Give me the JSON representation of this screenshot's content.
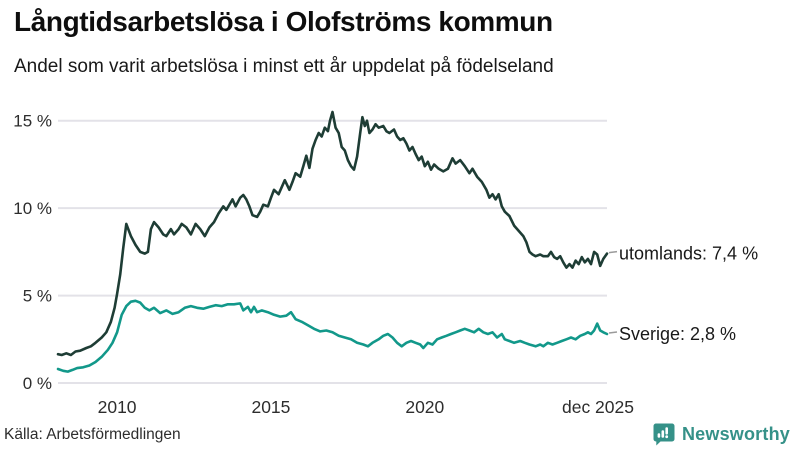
{
  "header": {
    "title": "Långtidsarbetslösa i Olofströms kommun",
    "subtitle": "Andel som varit arbetslösa i minst ett år uppdelat på födelseland"
  },
  "footer": {
    "source": "Källa: Arbetsförmedlingen",
    "brand": "Newsworthy"
  },
  "colors": {
    "utomlands_line": "#1e3d35",
    "sverige_line": "#12988a",
    "grid": "#e3e2e8",
    "tick_text": "#2d2d2d",
    "legend_text": "#191919",
    "leader_dash": "#9a9a9a",
    "brand_teal": "#359188"
  },
  "chart_data": {
    "type": "line",
    "title": "Långtidsarbetslösa i Olofströms kommun",
    "subtitle": "Andel som varit arbetslösa i minst ett år uppdelat på födelseland",
    "xlabel": "",
    "ylabel": "",
    "xlim": [
      2008.08,
      2025.92
    ],
    "ylim": [
      0,
      15.5
    ],
    "grid": true,
    "legend_position": "end-of-line",
    "y_ticks": [
      {
        "label": "0 %",
        "v": 0
      },
      {
        "label": "5 %",
        "v": 5
      },
      {
        "label": "10 %",
        "v": 10
      },
      {
        "label": "15 %",
        "v": 15
      }
    ],
    "x_ticks": [
      {
        "label": "2010",
        "x": 2010,
        "dx": 0
      },
      {
        "label": "2015",
        "x": 2015,
        "dx": 0
      },
      {
        "label": "2020",
        "x": 2020,
        "dx": 0
      },
      {
        "label": "dec 2025",
        "x": 2025.92,
        "dx": -9
      }
    ],
    "series": [
      {
        "name": "utomlands",
        "end_label": "utomlands: 7,4 %",
        "last_value_text": "7,4 %",
        "color": "#1e3d35",
        "points": [
          [
            2008.08,
            1.65
          ],
          [
            2008.2,
            1.6
          ],
          [
            2008.35,
            1.7
          ],
          [
            2008.5,
            1.6
          ],
          [
            2008.65,
            1.8
          ],
          [
            2008.8,
            1.85
          ],
          [
            2009.0,
            2.0
          ],
          [
            2009.15,
            2.1
          ],
          [
            2009.3,
            2.3
          ],
          [
            2009.5,
            2.6
          ],
          [
            2009.65,
            2.9
          ],
          [
            2009.8,
            3.5
          ],
          [
            2009.92,
            4.3
          ],
          [
            2010.0,
            5.1
          ],
          [
            2010.1,
            6.2
          ],
          [
            2010.2,
            7.7
          ],
          [
            2010.3,
            9.1
          ],
          [
            2010.45,
            8.4
          ],
          [
            2010.6,
            7.9
          ],
          [
            2010.75,
            7.5
          ],
          [
            2010.9,
            7.4
          ],
          [
            2011.0,
            7.5
          ],
          [
            2011.1,
            8.8
          ],
          [
            2011.2,
            9.2
          ],
          [
            2011.35,
            8.9
          ],
          [
            2011.5,
            8.5
          ],
          [
            2011.6,
            8.4
          ],
          [
            2011.75,
            8.8
          ],
          [
            2011.85,
            8.5
          ],
          [
            2012.0,
            8.8
          ],
          [
            2012.1,
            9.1
          ],
          [
            2012.25,
            8.9
          ],
          [
            2012.4,
            8.5
          ],
          [
            2012.55,
            9.1
          ],
          [
            2012.7,
            8.8
          ],
          [
            2012.85,
            8.4
          ],
          [
            2013.0,
            8.9
          ],
          [
            2013.15,
            9.2
          ],
          [
            2013.3,
            9.7
          ],
          [
            2013.45,
            10.1
          ],
          [
            2013.55,
            9.9
          ],
          [
            2013.65,
            10.2
          ],
          [
            2013.75,
            10.5
          ],
          [
            2013.85,
            10.1
          ],
          [
            2014.0,
            10.6
          ],
          [
            2014.1,
            10.75
          ],
          [
            2014.2,
            10.5
          ],
          [
            2014.3,
            10.1
          ],
          [
            2014.4,
            9.6
          ],
          [
            2014.55,
            9.5
          ],
          [
            2014.65,
            9.8
          ],
          [
            2014.75,
            10.2
          ],
          [
            2014.9,
            10.1
          ],
          [
            2015.0,
            10.6
          ],
          [
            2015.1,
            11.05
          ],
          [
            2015.25,
            10.8
          ],
          [
            2015.35,
            11.2
          ],
          [
            2015.45,
            11.6
          ],
          [
            2015.6,
            11.05
          ],
          [
            2015.7,
            11.5
          ],
          [
            2015.8,
            12.0
          ],
          [
            2015.95,
            11.8
          ],
          [
            2016.05,
            12.4
          ],
          [
            2016.15,
            13.0
          ],
          [
            2016.25,
            12.3
          ],
          [
            2016.35,
            13.4
          ],
          [
            2016.45,
            13.9
          ],
          [
            2016.55,
            14.3
          ],
          [
            2016.65,
            14.1
          ],
          [
            2016.75,
            14.6
          ],
          [
            2016.85,
            14.4
          ],
          [
            2016.92,
            15.0
          ],
          [
            2017.0,
            15.5
          ],
          [
            2017.1,
            14.6
          ],
          [
            2017.2,
            14.3
          ],
          [
            2017.3,
            13.5
          ],
          [
            2017.4,
            13.3
          ],
          [
            2017.5,
            12.75
          ],
          [
            2017.6,
            12.4
          ],
          [
            2017.7,
            12.2
          ],
          [
            2017.8,
            12.95
          ],
          [
            2017.9,
            14.3
          ],
          [
            2017.97,
            15.2
          ],
          [
            2018.05,
            14.7
          ],
          [
            2018.12,
            15.0
          ],
          [
            2018.2,
            14.3
          ],
          [
            2018.3,
            14.5
          ],
          [
            2018.4,
            14.8
          ],
          [
            2018.5,
            14.6
          ],
          [
            2018.65,
            14.7
          ],
          [
            2018.75,
            14.4
          ],
          [
            2018.85,
            14.3
          ],
          [
            2019.0,
            14.5
          ],
          [
            2019.1,
            14.1
          ],
          [
            2019.2,
            13.9
          ],
          [
            2019.3,
            14.0
          ],
          [
            2019.4,
            13.7
          ],
          [
            2019.5,
            13.3
          ],
          [
            2019.6,
            13.5
          ],
          [
            2019.7,
            13.1
          ],
          [
            2019.8,
            12.75
          ],
          [
            2019.9,
            12.95
          ],
          [
            2020.0,
            12.4
          ],
          [
            2020.1,
            12.65
          ],
          [
            2020.2,
            12.2
          ],
          [
            2020.3,
            12.5
          ],
          [
            2020.45,
            12.25
          ],
          [
            2020.6,
            12.1
          ],
          [
            2020.75,
            12.25
          ],
          [
            2020.9,
            12.85
          ],
          [
            2021.0,
            12.55
          ],
          [
            2021.15,
            12.75
          ],
          [
            2021.3,
            12.4
          ],
          [
            2021.45,
            12.0
          ],
          [
            2021.55,
            12.25
          ],
          [
            2021.7,
            11.8
          ],
          [
            2021.85,
            11.5
          ],
          [
            2022.0,
            11.05
          ],
          [
            2022.1,
            10.6
          ],
          [
            2022.2,
            10.8
          ],
          [
            2022.3,
            10.5
          ],
          [
            2022.4,
            10.8
          ],
          [
            2022.5,
            10.1
          ],
          [
            2022.6,
            9.8
          ],
          [
            2022.75,
            9.55
          ],
          [
            2022.9,
            9.0
          ],
          [
            2023.05,
            8.7
          ],
          [
            2023.2,
            8.4
          ],
          [
            2023.3,
            8.05
          ],
          [
            2023.4,
            7.5
          ],
          [
            2023.5,
            7.35
          ],
          [
            2023.6,
            7.25
          ],
          [
            2023.75,
            7.35
          ],
          [
            2023.85,
            7.25
          ],
          [
            2024.0,
            7.25
          ],
          [
            2024.1,
            7.5
          ],
          [
            2024.2,
            7.2
          ],
          [
            2024.3,
            7.1
          ],
          [
            2024.4,
            7.25
          ],
          [
            2024.5,
            6.9
          ],
          [
            2024.6,
            6.6
          ],
          [
            2024.7,
            6.8
          ],
          [
            2024.8,
            6.6
          ],
          [
            2024.9,
            7.0
          ],
          [
            2025.0,
            6.8
          ],
          [
            2025.1,
            7.2
          ],
          [
            2025.2,
            6.9
          ],
          [
            2025.3,
            7.1
          ],
          [
            2025.4,
            6.8
          ],
          [
            2025.5,
            7.5
          ],
          [
            2025.6,
            7.35
          ],
          [
            2025.7,
            6.7
          ],
          [
            2025.8,
            7.1
          ],
          [
            2025.92,
            7.4
          ]
        ]
      },
      {
        "name": "Sverige",
        "end_label": "Sverige: 2,8 %",
        "last_value_text": "2,8 %",
        "color": "#12988a",
        "points": [
          [
            2008.08,
            0.8
          ],
          [
            2008.25,
            0.7
          ],
          [
            2008.4,
            0.65
          ],
          [
            2008.55,
            0.75
          ],
          [
            2008.7,
            0.85
          ],
          [
            2008.9,
            0.9
          ],
          [
            2009.1,
            1.0
          ],
          [
            2009.3,
            1.2
          ],
          [
            2009.5,
            1.5
          ],
          [
            2009.7,
            1.9
          ],
          [
            2009.85,
            2.3
          ],
          [
            2010.0,
            2.9
          ],
          [
            2010.15,
            3.9
          ],
          [
            2010.3,
            4.4
          ],
          [
            2010.45,
            4.65
          ],
          [
            2010.6,
            4.7
          ],
          [
            2010.75,
            4.6
          ],
          [
            2010.9,
            4.3
          ],
          [
            2011.05,
            4.15
          ],
          [
            2011.2,
            4.3
          ],
          [
            2011.4,
            4.0
          ],
          [
            2011.6,
            4.15
          ],
          [
            2011.8,
            3.95
          ],
          [
            2012.0,
            4.05
          ],
          [
            2012.2,
            4.3
          ],
          [
            2012.4,
            4.4
          ],
          [
            2012.6,
            4.3
          ],
          [
            2012.8,
            4.25
          ],
          [
            2013.0,
            4.35
          ],
          [
            2013.2,
            4.45
          ],
          [
            2013.4,
            4.4
          ],
          [
            2013.6,
            4.5
          ],
          [
            2013.8,
            4.5
          ],
          [
            2014.0,
            4.55
          ],
          [
            2014.1,
            4.15
          ],
          [
            2014.25,
            4.35
          ],
          [
            2014.35,
            4.05
          ],
          [
            2014.45,
            4.35
          ],
          [
            2014.55,
            4.05
          ],
          [
            2014.7,
            4.15
          ],
          [
            2014.9,
            4.05
          ],
          [
            2015.1,
            3.9
          ],
          [
            2015.3,
            3.8
          ],
          [
            2015.5,
            3.85
          ],
          [
            2015.65,
            4.05
          ],
          [
            2015.8,
            3.65
          ],
          [
            2016.0,
            3.5
          ],
          [
            2016.2,
            3.3
          ],
          [
            2016.4,
            3.1
          ],
          [
            2016.6,
            2.95
          ],
          [
            2016.8,
            3.0
          ],
          [
            2017.0,
            2.9
          ],
          [
            2017.2,
            2.7
          ],
          [
            2017.4,
            2.6
          ],
          [
            2017.6,
            2.5
          ],
          [
            2017.8,
            2.3
          ],
          [
            2018.0,
            2.2
          ],
          [
            2018.15,
            2.1
          ],
          [
            2018.3,
            2.3
          ],
          [
            2018.5,
            2.5
          ],
          [
            2018.65,
            2.7
          ],
          [
            2018.8,
            2.8
          ],
          [
            2018.95,
            2.6
          ],
          [
            2019.1,
            2.3
          ],
          [
            2019.25,
            2.1
          ],
          [
            2019.4,
            2.3
          ],
          [
            2019.55,
            2.4
          ],
          [
            2019.7,
            2.3
          ],
          [
            2019.85,
            2.2
          ],
          [
            2019.95,
            2.0
          ],
          [
            2020.1,
            2.3
          ],
          [
            2020.25,
            2.2
          ],
          [
            2020.4,
            2.5
          ],
          [
            2020.55,
            2.6
          ],
          [
            2020.7,
            2.7
          ],
          [
            2020.85,
            2.8
          ],
          [
            2021.0,
            2.9
          ],
          [
            2021.15,
            3.0
          ],
          [
            2021.3,
            3.1
          ],
          [
            2021.45,
            3.0
          ],
          [
            2021.6,
            2.9
          ],
          [
            2021.75,
            3.1
          ],
          [
            2021.9,
            2.9
          ],
          [
            2022.05,
            2.8
          ],
          [
            2022.2,
            2.9
          ],
          [
            2022.35,
            2.6
          ],
          [
            2022.5,
            2.8
          ],
          [
            2022.6,
            2.5
          ],
          [
            2022.75,
            2.4
          ],
          [
            2022.9,
            2.3
          ],
          [
            2023.1,
            2.4
          ],
          [
            2023.25,
            2.3
          ],
          [
            2023.4,
            2.2
          ],
          [
            2023.6,
            2.1
          ],
          [
            2023.75,
            2.2
          ],
          [
            2023.85,
            2.1
          ],
          [
            2024.0,
            2.3
          ],
          [
            2024.15,
            2.2
          ],
          [
            2024.3,
            2.3
          ],
          [
            2024.45,
            2.4
          ],
          [
            2024.6,
            2.5
          ],
          [
            2024.75,
            2.6
          ],
          [
            2024.9,
            2.5
          ],
          [
            2025.05,
            2.7
          ],
          [
            2025.2,
            2.8
          ],
          [
            2025.3,
            2.9
          ],
          [
            2025.4,
            2.8
          ],
          [
            2025.5,
            3.0
          ],
          [
            2025.6,
            3.4
          ],
          [
            2025.7,
            3.0
          ],
          [
            2025.8,
            2.9
          ],
          [
            2025.92,
            2.8
          ]
        ]
      }
    ]
  }
}
